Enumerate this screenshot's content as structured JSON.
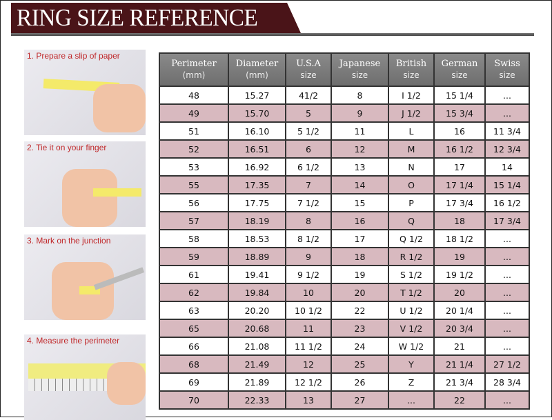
{
  "title": "RING SIZE REFERENCE",
  "steps": [
    {
      "label": "1. Prepare a slip of paper"
    },
    {
      "label": "2. Tie it on your finger"
    },
    {
      "label": "3. Mark on the junction"
    },
    {
      "label": "4. Measure the perimeter"
    }
  ],
  "table": {
    "headers": [
      {
        "title": "Perimeter",
        "sub": "(mm)"
      },
      {
        "title": "Diameter",
        "sub": "(mm)"
      },
      {
        "title": "U.S.A",
        "sub": "size"
      },
      {
        "title": "Japanese",
        "sub": "size"
      },
      {
        "title": "British",
        "sub": "size"
      },
      {
        "title": "German",
        "sub": "size"
      },
      {
        "title": "Swiss",
        "sub": "size"
      }
    ],
    "rows": [
      [
        "48",
        "15.27",
        "41/2",
        "8",
        "I 1/2",
        "15 1/4",
        "..."
      ],
      [
        "49",
        "15.70",
        "5",
        "9",
        "J 1/2",
        "15 3/4",
        "..."
      ],
      [
        "51",
        "16.10",
        "5 1/2",
        "11",
        "L",
        "16",
        "11 3/4"
      ],
      [
        "52",
        "16.51",
        "6",
        "12",
        "M",
        "16 1/2",
        "12 3/4"
      ],
      [
        "53",
        "16.92",
        "6 1/2",
        "13",
        "N",
        "17",
        "14"
      ],
      [
        "55",
        "17.35",
        "7",
        "14",
        "O",
        "17 1/4",
        "15 1/4"
      ],
      [
        "56",
        "17.75",
        "7 1/2",
        "15",
        "P",
        "17 3/4",
        "16 1/2"
      ],
      [
        "57",
        "18.19",
        "8",
        "16",
        "Q",
        "18",
        "17 3/4"
      ],
      [
        "58",
        "18.53",
        "8 1/2",
        "17",
        "Q  1/2",
        "18 1/2",
        "..."
      ],
      [
        "59",
        "18.89",
        "9",
        "18",
        "R 1/2",
        "19",
        "..."
      ],
      [
        "61",
        "19.41",
        "9 1/2",
        "19",
        "S 1/2",
        "19 1/2",
        "..."
      ],
      [
        "62",
        "19.84",
        "10",
        "20",
        "T 1/2",
        "20",
        "..."
      ],
      [
        "63",
        "20.20",
        "10 1/2",
        "22",
        "U 1/2",
        "20 1/4",
        "..."
      ],
      [
        "65",
        "20.68",
        "11",
        "23",
        "V 1/2",
        "20 3/4",
        "..."
      ],
      [
        "66",
        "21.08",
        "11 1/2",
        "24",
        "W 1/2",
        "21",
        "..."
      ],
      [
        "68",
        "21.49",
        "12",
        "25",
        "Y",
        "21 1/4",
        "27 1/2"
      ],
      [
        "69",
        "21.89",
        "12 1/2",
        "26",
        "Z",
        "21 3/4",
        "28 3/4"
      ],
      [
        "70",
        "22.33",
        "13",
        "27",
        "...",
        "22",
        "..."
      ]
    ]
  },
  "colors": {
    "banner": "#4a1418",
    "alt_row": "#d8b9bf",
    "header": "#7a7a7a",
    "step_label": "#c0282a"
  }
}
